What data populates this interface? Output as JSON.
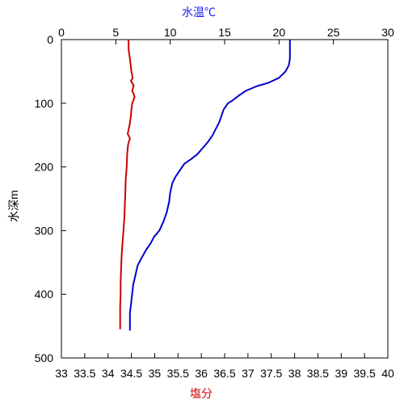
{
  "chart_data": {
    "type": "line",
    "title": "",
    "top_axis": {
      "label": "水温℃",
      "color": "#1a1aff",
      "lim": [
        0,
        30
      ],
      "ticks": [
        "0",
        "5",
        "10",
        "15",
        "20",
        "25",
        "30"
      ],
      "tick_values": [
        0,
        5,
        10,
        15,
        20,
        25,
        30
      ]
    },
    "bottom_axis": {
      "label": "塩分",
      "color": "#d40000",
      "lim": [
        33,
        40
      ],
      "ticks": [
        "33",
        "33.5",
        "34",
        "34.5",
        "35",
        "35.5",
        "36",
        "36.5",
        "37",
        "37.5",
        "38",
        "38.5",
        "39",
        "39.5",
        "40"
      ],
      "tick_values": [
        33,
        33.5,
        34,
        34.5,
        35,
        35.5,
        36,
        36.5,
        37,
        37.5,
        38,
        38.5,
        39,
        39.5,
        40
      ]
    },
    "y_axis": {
      "label": "水深m",
      "lim": [
        500,
        0
      ],
      "inverted": true,
      "ticks": [
        "0",
        "100",
        "200",
        "300",
        "400",
        "500"
      ],
      "tick_values": [
        0,
        100,
        200,
        300,
        400,
        500
      ]
    },
    "grid": false,
    "series": [
      {
        "axis": "top",
        "color": "#0000cc",
        "points": [
          [
            21.0,
            0
          ],
          [
            21.0,
            30
          ],
          [
            20.9,
            40
          ],
          [
            20.6,
            50
          ],
          [
            20.0,
            60
          ],
          [
            19.0,
            68
          ],
          [
            18.0,
            73
          ],
          [
            17.0,
            80
          ],
          [
            16.3,
            88
          ],
          [
            15.7,
            96
          ],
          [
            15.3,
            100
          ],
          [
            14.9,
            110
          ],
          [
            14.7,
            120
          ],
          [
            14.5,
            130
          ],
          [
            14.2,
            140
          ],
          [
            13.9,
            150
          ],
          [
            13.5,
            160
          ],
          [
            13.0,
            170
          ],
          [
            12.5,
            180
          ],
          [
            11.9,
            188
          ],
          [
            11.3,
            195
          ],
          [
            10.9,
            205
          ],
          [
            10.5,
            215
          ],
          [
            10.2,
            225
          ],
          [
            10.0,
            240
          ],
          [
            9.9,
            255
          ],
          [
            9.7,
            270
          ],
          [
            9.4,
            285
          ],
          [
            9.0,
            300
          ],
          [
            8.5,
            310
          ],
          [
            8.2,
            320
          ],
          [
            7.8,
            330
          ],
          [
            7.3,
            345
          ],
          [
            7.0,
            355
          ],
          [
            6.8,
            370
          ],
          [
            6.6,
            385
          ],
          [
            6.5,
            400
          ],
          [
            6.4,
            415
          ],
          [
            6.3,
            430
          ],
          [
            6.3,
            445
          ],
          [
            6.3,
            457
          ]
        ]
      },
      {
        "axis": "bottom",
        "color": "#cc0000",
        "points": [
          [
            34.44,
            0
          ],
          [
            34.44,
            15
          ],
          [
            34.47,
            30
          ],
          [
            34.5,
            50
          ],
          [
            34.53,
            60
          ],
          [
            34.49,
            65
          ],
          [
            34.55,
            72
          ],
          [
            34.52,
            80
          ],
          [
            34.57,
            90
          ],
          [
            34.52,
            100
          ],
          [
            34.5,
            110
          ],
          [
            34.49,
            120
          ],
          [
            34.46,
            135
          ],
          [
            34.42,
            148
          ],
          [
            34.47,
            155
          ],
          [
            34.43,
            165
          ],
          [
            34.41,
            180
          ],
          [
            34.4,
            200
          ],
          [
            34.38,
            220
          ],
          [
            34.37,
            240
          ],
          [
            34.36,
            260
          ],
          [
            34.35,
            280
          ],
          [
            34.33,
            300
          ],
          [
            34.31,
            320
          ],
          [
            34.29,
            340
          ],
          [
            34.28,
            360
          ],
          [
            34.27,
            380
          ],
          [
            34.27,
            400
          ],
          [
            34.26,
            420
          ],
          [
            34.26,
            440
          ],
          [
            34.26,
            455
          ]
        ]
      }
    ]
  }
}
